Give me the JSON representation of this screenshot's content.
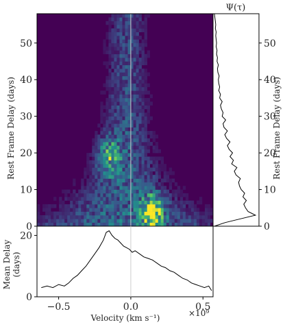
{
  "chart_data": [
    {
      "type": "heatmap",
      "name": "velocity-delay-map",
      "ylabel": "Rest Frame Delay (days)",
      "xlim": [
        -0.65,
        0.57
      ],
      "ylim": [
        0,
        58
      ],
      "yticks": [
        0,
        10,
        20,
        30,
        40,
        50
      ],
      "vertical_line_x": 0.0,
      "colormap": [
        "#440154",
        "#3b528b",
        "#21918c",
        "#5ec962",
        "#fde725"
      ],
      "density_profile": {
        "description_units": "velocity in units of 1e9 km s^-1, delay in days",
        "core_peak": {
          "x": 0.15,
          "y": 4,
          "intensity": 1.0
        },
        "secondary_peak": {
          "x": -0.15,
          "y": 19,
          "intensity": 0.55
        },
        "upper_envelope_delay": 58
      }
    },
    {
      "type": "line",
      "name": "psi-tau",
      "title": "Ψ(τ)",
      "ylabel": "Rest Frame Delay (days)",
      "yticks": [
        0,
        10,
        20,
        30,
        40,
        50
      ],
      "ylim": [
        0,
        58
      ],
      "y": [
        0,
        1,
        2,
        3,
        4,
        5,
        6,
        7,
        8,
        9,
        10,
        11,
        12,
        13,
        14,
        15,
        16,
        17,
        18,
        19,
        20,
        21,
        22,
        23,
        24,
        25,
        26,
        27,
        28,
        29,
        30,
        31,
        32,
        33,
        34,
        35,
        36,
        37,
        38,
        39,
        40,
        41,
        42,
        43,
        44,
        45,
        46,
        47,
        48,
        49,
        50,
        51,
        52,
        53,
        54,
        55,
        56,
        57,
        58
      ],
      "x": [
        0.0,
        0.25,
        0.6,
        0.95,
        0.78,
        0.72,
        0.68,
        0.74,
        0.66,
        0.7,
        0.62,
        0.58,
        0.56,
        0.6,
        0.5,
        0.46,
        0.52,
        0.4,
        0.44,
        0.36,
        0.42,
        0.34,
        0.3,
        0.36,
        0.28,
        0.24,
        0.3,
        0.22,
        0.2,
        0.26,
        0.18,
        0.2,
        0.16,
        0.14,
        0.18,
        0.12,
        0.14,
        0.1,
        0.12,
        0.1,
        0.09,
        0.11,
        0.08,
        0.07,
        0.09,
        0.06,
        0.07,
        0.05,
        0.06,
        0.04,
        0.05,
        0.04,
        0.03,
        0.04,
        0.02,
        0.03,
        0.02,
        0.01,
        0.0
      ]
    },
    {
      "type": "line",
      "name": "mean-delay",
      "xlabel": "Velocity (km s⁻¹)",
      "xlabel_scale": "×10⁹",
      "ylabel": "Mean Delay (days)",
      "xticks": [
        -0.5,
        0.0,
        0.5
      ],
      "xtick_labels": [
        "−0.5",
        "0.0",
        "0.5"
      ],
      "yticks": [
        0,
        20
      ],
      "xlim": [
        -0.65,
        0.57
      ],
      "ylim": [
        0,
        23
      ],
      "x": [
        -0.62,
        -0.58,
        -0.54,
        -0.5,
        -0.46,
        -0.43,
        -0.4,
        -0.37,
        -0.34,
        -0.31,
        -0.28,
        -0.25,
        -0.22,
        -0.19,
        -0.17,
        -0.15,
        -0.13,
        -0.11,
        -0.09,
        -0.07,
        -0.05,
        -0.03,
        -0.01,
        0.01,
        0.03,
        0.06,
        0.09,
        0.12,
        0.15,
        0.18,
        0.21,
        0.24,
        0.27,
        0.3,
        0.33,
        0.36,
        0.39,
        0.42,
        0.45,
        0.48,
        0.51,
        0.54,
        0.56
      ],
      "y": [
        3,
        3.5,
        3,
        4,
        3.5,
        4.5,
        6,
        7,
        8.5,
        10,
        12,
        14,
        16,
        18.5,
        21,
        21.5,
        20,
        19,
        18.5,
        17.5,
        16.5,
        16,
        15.5,
        14.5,
        15,
        14,
        13,
        12.5,
        12,
        11,
        10,
        9.5,
        8.5,
        8,
        7,
        6,
        5.5,
        4.5,
        4,
        3.5,
        3,
        3.5,
        2
      ]
    }
  ],
  "labels": {
    "psi_title": "Ψ(τ)",
    "rest_frame_delay": "Rest Frame Delay (days)",
    "mean_delay_line1": "Mean Delay",
    "mean_delay_line2": "(days)",
    "velocity_label": "Velocity (km s⁻¹)",
    "velocity_scale": "×10⁹"
  }
}
